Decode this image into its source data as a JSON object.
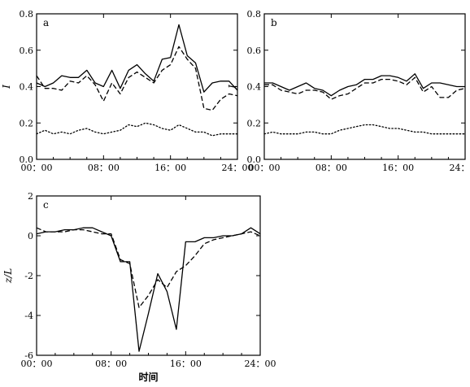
{
  "chart_data": [
    {
      "type": "line",
      "panel_label": "a",
      "ylabel": "I",
      "xlabel": "",
      "xlim": [
        0,
        24
      ],
      "ylim": [
        0,
        0.8
      ],
      "x_ticks": [
        0,
        8,
        16,
        24
      ],
      "x_tick_labels": [
        "00：00",
        "08：00",
        "16：00",
        "24：00"
      ],
      "y_ticks": [
        0,
        0.2,
        0.4,
        0.6,
        0.8
      ],
      "y_tick_labels": [
        "0.0",
        "0.2",
        "0.4",
        "0.6",
        "0.8"
      ],
      "x": [
        0,
        1,
        2,
        3,
        4,
        5,
        6,
        7,
        8,
        9,
        10,
        11,
        12,
        13,
        14,
        15,
        16,
        17,
        18,
        19,
        20,
        21,
        22,
        23,
        24
      ],
      "series": [
        {
          "style": "solid",
          "values": [
            0.42,
            0.4,
            0.42,
            0.46,
            0.45,
            0.45,
            0.49,
            0.42,
            0.4,
            0.49,
            0.39,
            0.49,
            0.52,
            0.47,
            0.43,
            0.55,
            0.56,
            0.74,
            0.57,
            0.53,
            0.37,
            0.42,
            0.43,
            0.43,
            0.38
          ]
        },
        {
          "style": "dashed",
          "values": [
            0.46,
            0.39,
            0.39,
            0.38,
            0.43,
            0.42,
            0.46,
            0.41,
            0.32,
            0.42,
            0.36,
            0.45,
            0.48,
            0.45,
            0.42,
            0.49,
            0.52,
            0.62,
            0.55,
            0.5,
            0.28,
            0.27,
            0.33,
            0.36,
            0.35
          ]
        },
        {
          "style": "dotted",
          "values": [
            0.14,
            0.16,
            0.14,
            0.15,
            0.14,
            0.16,
            0.17,
            0.15,
            0.14,
            0.15,
            0.16,
            0.19,
            0.18,
            0.2,
            0.19,
            0.17,
            0.16,
            0.19,
            0.17,
            0.15,
            0.15,
            0.13,
            0.14,
            0.14,
            0.14
          ]
        }
      ]
    },
    {
      "type": "line",
      "panel_label": "b",
      "ylabel": "I",
      "xlabel": "",
      "xlim": [
        0,
        24
      ],
      "ylim": [
        0,
        0.8
      ],
      "x_ticks": [
        0,
        8,
        16,
        24
      ],
      "x_tick_labels": [
        "00：00",
        "08：00",
        "16：00",
        "24：00"
      ],
      "y_ticks": [
        0,
        0.2,
        0.4,
        0.6,
        0.8
      ],
      "y_tick_labels": [
        "0.0",
        "0.2",
        "0.4",
        "0.6",
        "0.8"
      ],
      "x": [
        0,
        1,
        2,
        3,
        4,
        5,
        6,
        7,
        8,
        9,
        10,
        11,
        12,
        13,
        14,
        15,
        16,
        17,
        18,
        19,
        20,
        21,
        22,
        23,
        24
      ],
      "series": [
        {
          "style": "solid",
          "values": [
            0.42,
            0.42,
            0.4,
            0.38,
            0.4,
            0.42,
            0.39,
            0.38,
            0.35,
            0.38,
            0.4,
            0.41,
            0.44,
            0.44,
            0.46,
            0.46,
            0.45,
            0.43,
            0.47,
            0.39,
            0.42,
            0.42,
            0.41,
            0.4,
            0.4
          ]
        },
        {
          "style": "dashed",
          "values": [
            0.41,
            0.41,
            0.38,
            0.37,
            0.36,
            0.38,
            0.38,
            0.37,
            0.33,
            0.35,
            0.36,
            0.39,
            0.42,
            0.42,
            0.44,
            0.44,
            0.43,
            0.41,
            0.45,
            0.37,
            0.4,
            0.34,
            0.34,
            0.38,
            0.39
          ]
        },
        {
          "style": "dotted",
          "values": [
            0.14,
            0.15,
            0.14,
            0.14,
            0.14,
            0.15,
            0.15,
            0.14,
            0.14,
            0.16,
            0.17,
            0.18,
            0.19,
            0.19,
            0.18,
            0.17,
            0.17,
            0.16,
            0.15,
            0.15,
            0.14,
            0.14,
            0.14,
            0.14,
            0.14
          ]
        }
      ]
    },
    {
      "type": "line",
      "panel_label": "c",
      "ylabel": "z/L",
      "xlabel": "时间",
      "xlim": [
        0,
        24
      ],
      "ylim": [
        -6,
        2
      ],
      "x_ticks": [
        0,
        8,
        16,
        24
      ],
      "x_tick_labels": [
        "00：00",
        "08：00",
        "16：00",
        "24：00"
      ],
      "y_ticks": [
        -6,
        -4,
        -2,
        0,
        2
      ],
      "y_tick_labels": [
        "-6",
        "-4",
        "-2",
        "0",
        "2"
      ],
      "x": [
        0,
        1,
        2,
        3,
        4,
        5,
        6,
        7,
        8,
        9,
        10,
        11,
        12,
        13,
        14,
        15,
        16,
        17,
        18,
        19,
        20,
        21,
        22,
        23,
        24
      ],
      "series": [
        {
          "style": "solid",
          "values": [
            0.1,
            0.2,
            0.2,
            0.3,
            0.3,
            0.4,
            0.4,
            0.2,
            0.0,
            -1.3,
            -1.3,
            -5.8,
            -3.9,
            -1.9,
            -2.8,
            -4.7,
            -0.3,
            -0.3,
            -0.1,
            -0.1,
            0.0,
            0.0,
            0.1,
            0.4,
            0.1
          ]
        },
        {
          "style": "dashed",
          "values": [
            0.4,
            0.2,
            0.2,
            0.2,
            0.3,
            0.3,
            0.2,
            0.1,
            0.1,
            -1.2,
            -1.4,
            -3.6,
            -3.0,
            -2.2,
            -2.6,
            -1.8,
            -1.5,
            -1.0,
            -0.4,
            -0.2,
            -0.1,
            0.0,
            0.1,
            0.2,
            0.0
          ]
        }
      ]
    }
  ]
}
